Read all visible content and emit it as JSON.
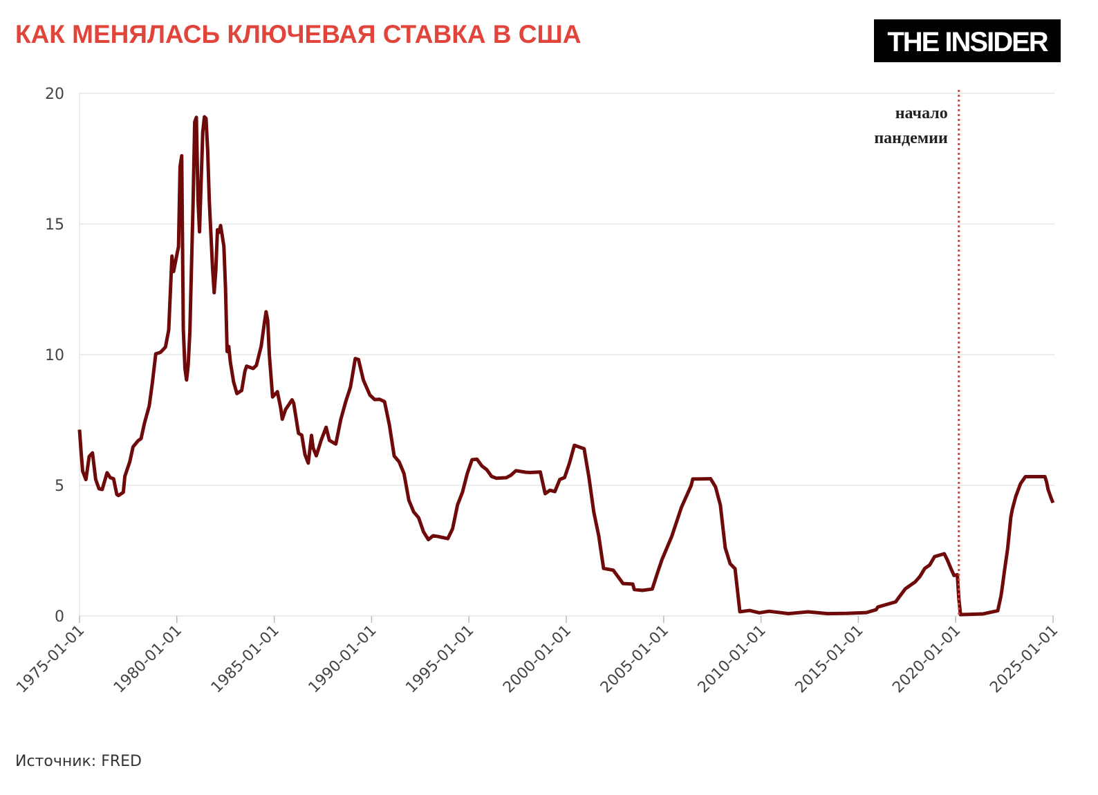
{
  "chart_data": {
    "type": "line",
    "title": "КАК МЕНЯЛАСЬ КЛЮЧЕВАЯ СТАВКА В США",
    "logo": "THE INSIDER",
    "source": "Источник: FRED",
    "color": "#6e0a0a",
    "grid": true,
    "x": [
      "1975-01-01",
      "1975-02-01",
      "1975-03-01",
      "1975-05-01",
      "1975-07-01",
      "1975-09-01",
      "1975-11-01",
      "1976-01-01",
      "1976-03-01",
      "1976-06-01",
      "1976-08-01",
      "1976-10-01",
      "1976-12-01",
      "1977-01-01",
      "1977-04-01",
      "1977-05-01",
      "1977-08-01",
      "1977-10-01",
      "1978-01-01",
      "1978-03-01",
      "1978-05-01",
      "1978-08-01",
      "1978-10-01",
      "1978-12-01",
      "1979-03-01",
      "1979-06-01",
      "1979-08-01",
      "1979-10-01",
      "1979-11-01",
      "1980-01-01",
      "1980-02-01",
      "1980-03-01",
      "1980-04-01",
      "1980-05-01",
      "1980-06-01",
      "1980-07-01",
      "1980-08-01",
      "1980-09-01",
      "1980-11-01",
      "1980-12-01",
      "1981-01-01",
      "1981-02-01",
      "1981-03-01",
      "1981-05-01",
      "1981-06-01",
      "1981-07-01",
      "1981-08-01",
      "1981-09-01",
      "1981-11-01",
      "1981-12-01",
      "1982-01-01",
      "1982-02-01",
      "1982-03-01",
      "1982-04-01",
      "1982-06-01",
      "1982-07-01",
      "1982-08-01",
      "1982-09-01",
      "1982-10-01",
      "1982-12-01",
      "1983-02-01",
      "1983-05-01",
      "1983-07-01",
      "1983-08-01",
      "1983-12-01",
      "1984-02-01",
      "1984-05-01",
      "1984-07-01",
      "1984-08-01",
      "1984-09-01",
      "1984-10-01",
      "1984-12-01",
      "1985-03-01",
      "1985-05-01",
      "1985-06-01",
      "1985-08-01",
      "1985-12-01",
      "1986-01-01",
      "1986-04-01",
      "1986-06-01",
      "1986-08-01",
      "1986-10-01",
      "1986-12-01",
      "1987-01-01",
      "1987-03-01",
      "1987-06-01",
      "1987-09-01",
      "1987-11-01",
      "1988-03-01",
      "1988-06-01",
      "1988-09-01",
      "1988-12-01",
      "1989-03-01",
      "1989-05-01",
      "1989-08-01",
      "1989-12-01",
      "1990-03-01",
      "1990-06-01",
      "1990-09-01",
      "1990-12-01",
      "1991-03-01",
      "1991-06-01",
      "1991-09-01",
      "1991-12-01",
      "1992-03-01",
      "1992-06-01",
      "1992-09-01",
      "1992-12-01",
      "1993-03-01",
      "1993-06-01",
      "1993-12-01",
      "1994-03-01",
      "1994-06-01",
      "1994-09-01",
      "1994-12-01",
      "1995-03-01",
      "1995-06-01",
      "1995-09-01",
      "1995-12-01",
      "1996-03-01",
      "1996-06-01",
      "1996-12-01",
      "1997-03-01",
      "1997-06-01",
      "1997-12-01",
      "1998-03-01",
      "1998-09-01",
      "1998-12-01",
      "1999-03-01",
      "1999-06-01",
      "1999-09-01",
      "1999-12-01",
      "2000-03-01",
      "2000-06-01",
      "2000-12-01",
      "2001-03-01",
      "2001-06-01",
      "2001-09-01",
      "2001-12-01",
      "2002-06-01",
      "2002-12-01",
      "2003-06-01",
      "2003-07-01",
      "2003-12-01",
      "2004-06-01",
      "2004-09-01",
      "2004-12-01",
      "2005-06-01",
      "2005-12-01",
      "2006-06-01",
      "2006-07-01",
      "2007-06-01",
      "2007-09-01",
      "2007-12-01",
      "2008-03-01",
      "2008-06-01",
      "2008-09-01",
      "2008-12-01",
      "2009-06-01",
      "2009-12-01",
      "2010-06-01",
      "2011-06-01",
      "2012-06-01",
      "2013-06-01",
      "2014-06-01",
      "2015-06-01",
      "2015-12-01",
      "2016-01-01",
      "2016-12-01",
      "2017-03-01",
      "2017-06-01",
      "2017-12-01",
      "2018-03-01",
      "2018-06-01",
      "2018-09-01",
      "2018-12-01",
      "2019-06-01",
      "2019-08-01",
      "2019-10-01",
      "2019-12-01",
      "2020-02-01",
      "2020-03-01",
      "2020-04-01",
      "2021-06-01",
      "2022-03-01",
      "2022-05-01",
      "2022-06-01",
      "2022-07-01",
      "2022-09-01",
      "2022-11-01",
      "2022-12-01",
      "2023-02-01",
      "2023-05-01",
      "2023-08-01",
      "2024-08-01",
      "2024-09-01",
      "2024-10-01",
      "2024-12-01",
      "2025-01-01"
    ],
    "values": [
      7.13,
      6.24,
      5.54,
      5.22,
      6.1,
      6.24,
      5.22,
      4.87,
      4.84,
      5.48,
      5.29,
      5.25,
      4.65,
      4.61,
      4.73,
      5.35,
      5.9,
      6.47,
      6.7,
      6.79,
      7.36,
      8.04,
      8.96,
      10.03,
      10.09,
      10.29,
      10.94,
      13.77,
      13.18,
      13.82,
      14.13,
      17.19,
      17.61,
      10.98,
      9.47,
      9.03,
      9.61,
      10.87,
      15.85,
      18.9,
      19.08,
      15.93,
      14.7,
      18.52,
      19.1,
      19.04,
      17.82,
      15.87,
      13.31,
      12.37,
      13.22,
      14.78,
      14.68,
      14.94,
      14.15,
      12.59,
      10.12,
      10.31,
      9.71,
      8.95,
      8.51,
      8.63,
      9.37,
      9.56,
      9.47,
      9.59,
      10.32,
      11.23,
      11.64,
      11.3,
      9.99,
      8.38,
      8.58,
      7.97,
      7.53,
      7.9,
      8.27,
      8.14,
      6.99,
      6.92,
      6.17,
      5.85,
      6.91,
      6.43,
      6.13,
      6.73,
      7.22,
      6.72,
      6.58,
      7.51,
      8.19,
      8.76,
      9.85,
      9.81,
      9.02,
      8.45,
      8.28,
      8.29,
      8.2,
      7.31,
      6.12,
      5.9,
      5.45,
      4.43,
      3.98,
      3.76,
      3.22,
      2.92,
      3.07,
      3.04,
      2.96,
      3.34,
      4.25,
      4.73,
      5.45,
      5.98,
      6.0,
      5.74,
      5.6,
      5.34,
      5.27,
      5.29,
      5.39,
      5.56,
      5.5,
      5.49,
      5.51,
      4.68,
      4.81,
      4.76,
      5.22,
      5.3,
      5.85,
      6.53,
      6.4,
      5.31,
      3.97,
      3.07,
      1.82,
      1.75,
      1.24,
      1.22,
      1.01,
      0.98,
      1.03,
      1.61,
      2.16,
      3.04,
      4.16,
      4.99,
      5.24,
      5.25,
      4.94,
      4.24,
      2.61,
      2.0,
      1.81,
      0.16,
      0.21,
      0.12,
      0.18,
      0.09,
      0.16,
      0.09,
      0.1,
      0.13,
      0.24,
      0.34,
      0.54,
      0.79,
      1.04,
      1.3,
      1.51,
      1.82,
      1.95,
      2.27,
      2.38,
      2.13,
      1.83,
      1.55,
      1.58,
      0.65,
      0.05,
      0.08,
      0.2,
      0.77,
      1.21,
      1.68,
      2.56,
      3.78,
      4.1,
      4.57,
      5.06,
      5.33,
      5.33,
      5.13,
      4.83,
      4.48,
      4.33
    ],
    "xlim": [
      "1975-01-01",
      "2025-01-01"
    ],
    "xticks": [
      "1975-01-01",
      "1980-01-01",
      "1985-01-01",
      "1990-01-01",
      "1995-01-01",
      "2000-01-01",
      "2005-01-01",
      "2010-01-01",
      "2015-01-01",
      "2020-01-01",
      "2025-01-01"
    ],
    "ylim": [
      0,
      20
    ],
    "yticks": [
      0,
      5,
      10,
      15,
      20
    ],
    "annotations": [
      {
        "x": "2020-03-01",
        "lines": [
          "начало",
          "пандемии"
        ],
        "color": "#e0443a"
      }
    ]
  }
}
